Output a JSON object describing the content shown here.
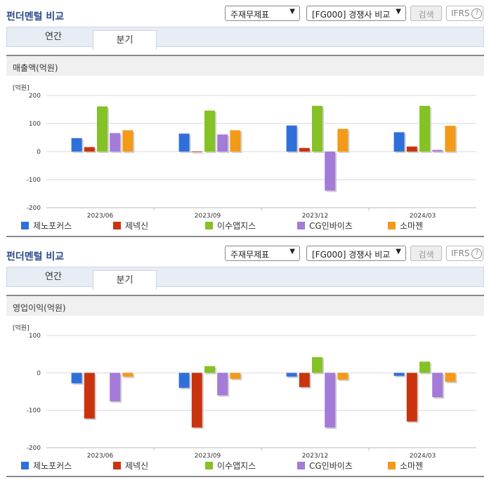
{
  "panels": [
    {
      "title": "펀더멘털 비교",
      "select1": "주재무제표",
      "select2": "[FG000] 경쟁사 비교",
      "search_label": "검색",
      "ifrs_label": "IFRS",
      "help_icon": "question-circle-icon",
      "tabs": [
        {
          "label": "연간"
        },
        {
          "label": "분기"
        }
      ],
      "active_tab": "분기",
      "chart_data": {
        "type": "bar",
        "title": "매출액(억원)",
        "unit_label": "[억원]",
        "categories": [
          "2023/06",
          "2023/09",
          "2023/12",
          "2024/03"
        ],
        "ylim": [
          -200,
          200
        ],
        "yticks": [
          "200",
          "100",
          "0",
          "-100",
          "-200"
        ],
        "series": [
          {
            "name": "제노포커스",
            "color": "#2f6fdb",
            "values": [
              48,
              64,
              93,
              69
            ]
          },
          {
            "name": "제넥신",
            "color": "#c9340f",
            "values": [
              16,
              -2,
              13,
              18
            ]
          },
          {
            "name": "이수앱지스",
            "color": "#84c225",
            "values": [
              161,
              146,
              163,
              163
            ]
          },
          {
            "name": "CG인바이츠",
            "color": "#a57bd8",
            "values": [
              66,
              61,
              -139,
              6
            ]
          },
          {
            "name": "소마젠",
            "color": "#f39a18",
            "values": [
              76,
              76,
              81,
              92
            ]
          }
        ]
      }
    },
    {
      "title": "펀더멘털 비교",
      "select1": "주재무제표",
      "select2": "[FG000] 경쟁사 비교",
      "search_label": "검색",
      "ifrs_label": "IFRS",
      "help_icon": "question-circle-icon",
      "tabs": [
        {
          "label": "연간"
        },
        {
          "label": "분기"
        }
      ],
      "active_tab": "분기",
      "chart_data": {
        "type": "bar",
        "title": "영업이익(억원)",
        "unit_label": "[억원]",
        "categories": [
          "2023/06",
          "2023/09",
          "2023/12",
          "2024/03"
        ],
        "ylim": [
          -200,
          100
        ],
        "yticks": [
          "100",
          "0",
          "-100",
          "-200"
        ],
        "series": [
          {
            "name": "제노포커스",
            "color": "#2f6fdb",
            "values": [
              -28,
              -40,
              -10,
              -8
            ]
          },
          {
            "name": "제넥신",
            "color": "#c9340f",
            "values": [
              -122,
              -146,
              -38,
              -130
            ]
          },
          {
            "name": "이수앱지스",
            "color": "#84c225",
            "values": [
              0,
              18,
              42,
              30
            ]
          },
          {
            "name": "CG인바이츠",
            "color": "#a57bd8",
            "values": [
              -76,
              -60,
              -146,
              -65
            ]
          },
          {
            "name": "소마젠",
            "color": "#f39a18",
            "values": [
              -10,
              -16,
              -18,
              -24
            ]
          }
        ]
      }
    }
  ]
}
